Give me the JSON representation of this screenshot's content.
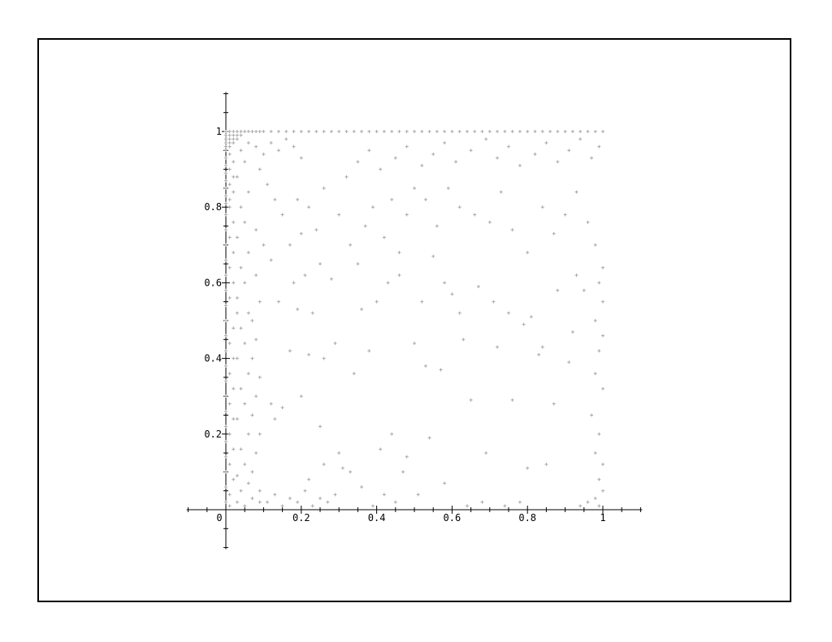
{
  "chart_data": {
    "type": "scatter",
    "title": "",
    "xlabel": "",
    "ylabel": "",
    "xlim": [
      -0.1,
      1.1
    ],
    "ylim": [
      -0.1,
      1.1
    ],
    "grid": false,
    "marker": "+",
    "colors": {
      "points": "#a8a8a8",
      "axes": "#000000",
      "frame": "#000000"
    },
    "x_ticks": [
      {
        "value": 0,
        "label": "0"
      },
      {
        "value": 0.2,
        "label": "0.2"
      },
      {
        "value": 0.4,
        "label": "0.4"
      },
      {
        "value": 0.6,
        "label": "0.6"
      },
      {
        "value": 0.8,
        "label": "0.8"
      },
      {
        "value": 1,
        "label": "1"
      }
    ],
    "y_ticks": [
      {
        "value": 0.2,
        "label": "0.2"
      },
      {
        "value": 0.4,
        "label": "0.4"
      },
      {
        "value": 0.6,
        "label": "0.6"
      },
      {
        "value": 0.8,
        "label": "0.8"
      },
      {
        "value": 1,
        "label": "1"
      }
    ],
    "points": [
      [
        0.0,
        1.0
      ],
      [
        0.01,
        1.0
      ],
      [
        0.02,
        1.0
      ],
      [
        0.03,
        1.0
      ],
      [
        0.04,
        1.0
      ],
      [
        0.05,
        1.0
      ],
      [
        0.06,
        1.0
      ],
      [
        0.07,
        1.0
      ],
      [
        0.08,
        1.0
      ],
      [
        0.09,
        1.0
      ],
      [
        0.1,
        1.0
      ],
      [
        0.12,
        1.0
      ],
      [
        0.14,
        1.0
      ],
      [
        0.16,
        1.0
      ],
      [
        0.18,
        1.0
      ],
      [
        0.2,
        1.0
      ],
      [
        0.22,
        1.0
      ],
      [
        0.24,
        1.0
      ],
      [
        0.26,
        1.0
      ],
      [
        0.28,
        1.0
      ],
      [
        0.3,
        1.0
      ],
      [
        0.32,
        1.0
      ],
      [
        0.34,
        1.0
      ],
      [
        0.36,
        1.0
      ],
      [
        0.38,
        1.0
      ],
      [
        0.4,
        1.0
      ],
      [
        0.42,
        1.0
      ],
      [
        0.44,
        1.0
      ],
      [
        0.46,
        1.0
      ],
      [
        0.48,
        1.0
      ],
      [
        0.5,
        1.0
      ],
      [
        0.52,
        1.0
      ],
      [
        0.54,
        1.0
      ],
      [
        0.56,
        1.0
      ],
      [
        0.58,
        1.0
      ],
      [
        0.6,
        1.0
      ],
      [
        0.62,
        1.0
      ],
      [
        0.64,
        1.0
      ],
      [
        0.66,
        1.0
      ],
      [
        0.68,
        1.0
      ],
      [
        0.7,
        1.0
      ],
      [
        0.72,
        1.0
      ],
      [
        0.74,
        1.0
      ],
      [
        0.76,
        1.0
      ],
      [
        0.78,
        1.0
      ],
      [
        0.8,
        1.0
      ],
      [
        0.82,
        1.0
      ],
      [
        0.84,
        1.0
      ],
      [
        0.86,
        1.0
      ],
      [
        0.88,
        1.0
      ],
      [
        0.9,
        1.0
      ],
      [
        0.92,
        1.0
      ],
      [
        0.94,
        1.0
      ],
      [
        0.96,
        1.0
      ],
      [
        0.98,
        1.0
      ],
      [
        1.0,
        1.0
      ],
      [
        0.0,
        0.99
      ],
      [
        0.01,
        0.99
      ],
      [
        0.02,
        0.99
      ],
      [
        0.03,
        0.99
      ],
      [
        0.04,
        0.99
      ],
      [
        0.0,
        0.98
      ],
      [
        0.01,
        0.98
      ],
      [
        0.02,
        0.98
      ],
      [
        0.03,
        0.98
      ],
      [
        0.0,
        0.97
      ],
      [
        0.01,
        0.97
      ],
      [
        0.02,
        0.97
      ],
      [
        0.0,
        0.96
      ],
      [
        0.01,
        0.96
      ],
      [
        0.0,
        0.95
      ],
      [
        0.01,
        0.94
      ],
      [
        0.0,
        0.93
      ],
      [
        0.02,
        0.92
      ],
      [
        0.0,
        0.91
      ],
      [
        0.01,
        0.9
      ],
      [
        0.0,
        0.89
      ],
      [
        0.02,
        0.88
      ],
      [
        0.0,
        0.87
      ],
      [
        0.01,
        0.86
      ],
      [
        0.0,
        0.85
      ],
      [
        0.02,
        0.84
      ],
      [
        0.0,
        0.83
      ],
      [
        0.01,
        0.82
      ],
      [
        0.0,
        0.81
      ],
      [
        0.01,
        0.8
      ],
      [
        0.0,
        0.78
      ],
      [
        0.02,
        0.76
      ],
      [
        0.0,
        0.74
      ],
      [
        0.01,
        0.72
      ],
      [
        0.0,
        0.7
      ],
      [
        0.02,
        0.68
      ],
      [
        0.0,
        0.66
      ],
      [
        0.01,
        0.64
      ],
      [
        0.0,
        0.62
      ],
      [
        0.02,
        0.6
      ],
      [
        0.0,
        0.58
      ],
      [
        0.01,
        0.56
      ],
      [
        0.0,
        0.54
      ],
      [
        0.03,
        0.52
      ],
      [
        0.0,
        0.5
      ],
      [
        0.02,
        0.48
      ],
      [
        0.0,
        0.46
      ],
      [
        0.01,
        0.44
      ],
      [
        0.0,
        0.42
      ],
      [
        0.02,
        0.4
      ],
      [
        0.0,
        0.38
      ],
      [
        0.01,
        0.36
      ],
      [
        0.0,
        0.34
      ],
      [
        0.02,
        0.32
      ],
      [
        0.0,
        0.3
      ],
      [
        0.01,
        0.28
      ],
      [
        0.0,
        0.26
      ],
      [
        0.02,
        0.24
      ],
      [
        0.0,
        0.22
      ],
      [
        0.01,
        0.2
      ],
      [
        0.0,
        0.18
      ],
      [
        0.02,
        0.16
      ],
      [
        0.0,
        0.14
      ],
      [
        0.01,
        0.12
      ],
      [
        0.0,
        0.1
      ],
      [
        0.02,
        0.08
      ],
      [
        0.0,
        0.06
      ],
      [
        0.01,
        0.04
      ],
      [
        0.0,
        0.02
      ],
      [
        0.01,
        0.01
      ],
      [
        0.03,
        0.02
      ],
      [
        0.05,
        0.01
      ],
      [
        0.07,
        0.03
      ],
      [
        0.09,
        0.02
      ],
      [
        0.04,
        0.05
      ],
      [
        0.06,
        0.07
      ],
      [
        0.03,
        0.09
      ],
      [
        0.05,
        0.12
      ],
      [
        0.04,
        0.16
      ],
      [
        0.06,
        0.2
      ],
      [
        0.03,
        0.24
      ],
      [
        0.05,
        0.28
      ],
      [
        0.04,
        0.32
      ],
      [
        0.06,
        0.36
      ],
      [
        0.03,
        0.4
      ],
      [
        0.05,
        0.44
      ],
      [
        0.04,
        0.48
      ],
      [
        0.06,
        0.52
      ],
      [
        0.03,
        0.56
      ],
      [
        0.05,
        0.6
      ],
      [
        0.04,
        0.64
      ],
      [
        0.06,
        0.68
      ],
      [
        0.03,
        0.72
      ],
      [
        0.05,
        0.76
      ],
      [
        0.04,
        0.8
      ],
      [
        0.06,
        0.84
      ],
      [
        0.03,
        0.88
      ],
      [
        0.05,
        0.92
      ],
      [
        0.04,
        0.95
      ],
      [
        0.06,
        0.97
      ],
      [
        0.08,
        0.96
      ],
      [
        0.1,
        0.94
      ],
      [
        0.12,
        0.97
      ],
      [
        0.14,
        0.95
      ],
      [
        0.16,
        0.98
      ],
      [
        0.18,
        0.96
      ],
      [
        0.2,
        0.93
      ],
      [
        0.09,
        0.9
      ],
      [
        0.11,
        0.86
      ],
      [
        0.13,
        0.82
      ],
      [
        0.15,
        0.78
      ],
      [
        0.08,
        0.74
      ],
      [
        0.1,
        0.7
      ],
      [
        0.12,
        0.66
      ],
      [
        0.08,
        0.62
      ],
      [
        0.09,
        0.55
      ],
      [
        0.07,
        0.5
      ],
      [
        0.08,
        0.45
      ],
      [
        0.07,
        0.4
      ],
      [
        0.09,
        0.35
      ],
      [
        0.08,
        0.3
      ],
      [
        0.07,
        0.25
      ],
      [
        0.09,
        0.2
      ],
      [
        0.08,
        0.15
      ],
      [
        0.07,
        0.1
      ],
      [
        0.09,
        0.05
      ],
      [
        0.11,
        0.02
      ],
      [
        0.13,
        0.04
      ],
      [
        0.15,
        0.01
      ],
      [
        0.17,
        0.03
      ],
      [
        0.19,
        0.02
      ],
      [
        0.21,
        0.05
      ],
      [
        0.23,
        0.01
      ],
      [
        0.25,
        0.03
      ],
      [
        0.27,
        0.02
      ],
      [
        0.29,
        0.04
      ],
      [
        0.22,
        0.08
      ],
      [
        0.26,
        0.12
      ],
      [
        0.31,
        0.11
      ],
      [
        0.33,
        0.1
      ],
      [
        0.12,
        0.28
      ],
      [
        0.15,
        0.27
      ],
      [
        0.13,
        0.24
      ],
      [
        0.2,
        0.3
      ],
      [
        0.25,
        0.22
      ],
      [
        0.17,
        0.42
      ],
      [
        0.22,
        0.41
      ],
      [
        0.26,
        0.4
      ],
      [
        0.29,
        0.44
      ],
      [
        0.14,
        0.55
      ],
      [
        0.19,
        0.53
      ],
      [
        0.23,
        0.52
      ],
      [
        0.18,
        0.6
      ],
      [
        0.21,
        0.62
      ],
      [
        0.25,
        0.65
      ],
      [
        0.28,
        0.61
      ],
      [
        0.17,
        0.7
      ],
      [
        0.2,
        0.73
      ],
      [
        0.24,
        0.74
      ],
      [
        0.19,
        0.82
      ],
      [
        0.22,
        0.8
      ],
      [
        0.26,
        0.85
      ],
      [
        0.3,
        0.78
      ],
      [
        0.32,
        0.88
      ],
      [
        0.35,
        0.92
      ],
      [
        0.38,
        0.95
      ],
      [
        0.41,
        0.9
      ],
      [
        0.45,
        0.93
      ],
      [
        0.48,
        0.96
      ],
      [
        0.52,
        0.91
      ],
      [
        0.55,
        0.94
      ],
      [
        0.58,
        0.97
      ],
      [
        0.61,
        0.92
      ],
      [
        0.65,
        0.95
      ],
      [
        0.69,
        0.98
      ],
      [
        0.72,
        0.93
      ],
      [
        0.75,
        0.96
      ],
      [
        0.78,
        0.91
      ],
      [
        0.82,
        0.94
      ],
      [
        0.85,
        0.97
      ],
      [
        0.88,
        0.92
      ],
      [
        0.91,
        0.95
      ],
      [
        0.94,
        0.98
      ],
      [
        0.97,
        0.93
      ],
      [
        0.99,
        0.96
      ],
      [
        0.33,
        0.7
      ],
      [
        0.35,
        0.65
      ],
      [
        0.37,
        0.75
      ],
      [
        0.39,
        0.8
      ],
      [
        0.42,
        0.72
      ],
      [
        0.44,
        0.82
      ],
      [
        0.46,
        0.68
      ],
      [
        0.48,
        0.78
      ],
      [
        0.5,
        0.85
      ],
      [
        0.53,
        0.82
      ],
      [
        0.56,
        0.75
      ],
      [
        0.59,
        0.85
      ],
      [
        0.62,
        0.8
      ],
      [
        0.66,
        0.78
      ],
      [
        0.7,
        0.76
      ],
      [
        0.73,
        0.84
      ],
      [
        0.76,
        0.74
      ],
      [
        0.8,
        0.68
      ],
      [
        0.84,
        0.8
      ],
      [
        0.87,
        0.73
      ],
      [
        0.9,
        0.78
      ],
      [
        0.93,
        0.84
      ],
      [
        0.96,
        0.76
      ],
      [
        0.98,
        0.7
      ],
      [
        1.0,
        0.64
      ],
      [
        0.99,
        0.6
      ],
      [
        1.0,
        0.55
      ],
      [
        0.98,
        0.5
      ],
      [
        1.0,
        0.46
      ],
      [
        0.99,
        0.42
      ],
      [
        0.98,
        0.36
      ],
      [
        1.0,
        0.32
      ],
      [
        0.97,
        0.25
      ],
      [
        0.99,
        0.2
      ],
      [
        0.98,
        0.15
      ],
      [
        1.0,
        0.12
      ],
      [
        0.99,
        0.08
      ],
      [
        1.0,
        0.05
      ],
      [
        0.98,
        0.03
      ],
      [
        0.99,
        0.01
      ],
      [
        0.96,
        0.02
      ],
      [
        0.94,
        0.01
      ],
      [
        0.91,
        0.39
      ],
      [
        0.95,
        0.58
      ],
      [
        0.93,
        0.62
      ],
      [
        0.87,
        0.28
      ],
      [
        0.83,
        0.41
      ],
      [
        0.8,
        0.11
      ],
      [
        0.76,
        0.29
      ],
      [
        0.72,
        0.43
      ],
      [
        0.69,
        0.15
      ],
      [
        0.65,
        0.29
      ],
      [
        0.63,
        0.45
      ],
      [
        0.6,
        0.57
      ],
      [
        0.57,
        0.37
      ],
      [
        0.53,
        0.38
      ],
      [
        0.5,
        0.44
      ],
      [
        0.47,
        0.1
      ],
      [
        0.44,
        0.2
      ],
      [
        0.41,
        0.16
      ],
      [
        0.38,
        0.42
      ],
      [
        0.36,
        0.53
      ],
      [
        0.34,
        0.36
      ],
      [
        0.4,
        0.55
      ],
      [
        0.43,
        0.6
      ],
      [
        0.46,
        0.62
      ],
      [
        0.52,
        0.55
      ],
      [
        0.55,
        0.67
      ],
      [
        0.58,
        0.6
      ],
      [
        0.62,
        0.52
      ],
      [
        0.67,
        0.59
      ],
      [
        0.71,
        0.55
      ],
      [
        0.75,
        0.52
      ],
      [
        0.79,
        0.49
      ],
      [
        0.81,
        0.51
      ],
      [
        0.84,
        0.43
      ],
      [
        0.88,
        0.58
      ],
      [
        0.92,
        0.47
      ],
      [
        0.85,
        0.12
      ],
      [
        0.78,
        0.02
      ],
      [
        0.74,
        0.01
      ],
      [
        0.68,
        0.02
      ],
      [
        0.64,
        0.01
      ],
      [
        0.58,
        0.07
      ],
      [
        0.54,
        0.19
      ],
      [
        0.51,
        0.04
      ],
      [
        0.48,
        0.14
      ],
      [
        0.45,
        0.02
      ],
      [
        0.42,
        0.04
      ],
      [
        0.39,
        0.01
      ],
      [
        0.36,
        0.06
      ],
      [
        0.3,
        0.15
      ]
    ]
  }
}
